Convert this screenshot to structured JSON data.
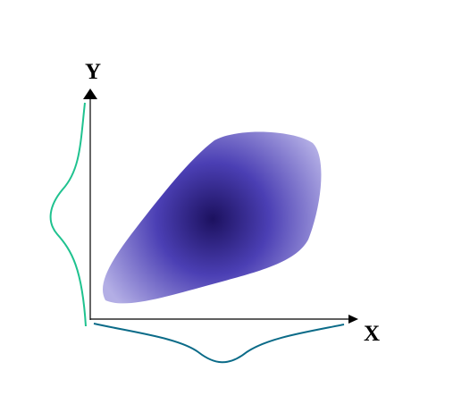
{
  "axes": {
    "x_label": "X",
    "y_label": "Y"
  },
  "colors": {
    "axis": "#000000",
    "density_center": "#1c115f",
    "density_mid": "#4b3fb4",
    "density_edge": "#b3aee5",
    "marginal_x_curve": "#0b6b88",
    "marginal_y_curve": "#1fc28f"
  }
}
